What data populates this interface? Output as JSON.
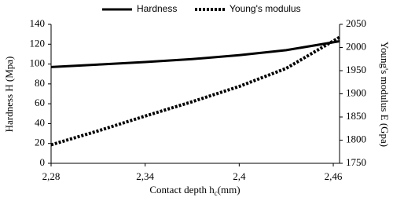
{
  "chart_data": {
    "type": "line",
    "x": [
      2.28,
      2.31,
      2.34,
      2.37,
      2.4,
      2.43,
      2.464
    ],
    "series": [
      {
        "name": "Hardness",
        "color": "#000000",
        "style": "solid",
        "axis": "y",
        "values": [
          97,
          99.5,
          102,
          105,
          109,
          114,
          123
        ]
      },
      {
        "name": "Young's modulus",
        "color": "#000000",
        "style": "dotted",
        "axis": "y2",
        "values": [
          1790,
          1820,
          1852,
          1883,
          1916,
          1955,
          2022
        ]
      }
    ],
    "x_label": {
      "main": "Contact depth h",
      "sub": "c",
      "unit": "(mm)"
    },
    "y_label": "Hardness H (Mpa)",
    "y2_label": "Young's modulus E (Gpa)",
    "xlim": [
      2.28,
      2.464
    ],
    "xticks": [
      {
        "value": 2.28,
        "label": "2,28"
      },
      {
        "value": 2.34,
        "label": "2,34"
      },
      {
        "value": 2.4,
        "label": "2,4"
      },
      {
        "value": 2.46,
        "label": "2,46"
      }
    ],
    "ylim": [
      0,
      140
    ],
    "yticks": [
      0,
      20,
      40,
      60,
      80,
      100,
      120,
      140
    ],
    "y2lim": [
      1750,
      2050
    ],
    "y2ticks": [
      1750,
      1800,
      1850,
      1900,
      1950,
      2000,
      2050
    ],
    "grid": false,
    "legend": "top"
  }
}
